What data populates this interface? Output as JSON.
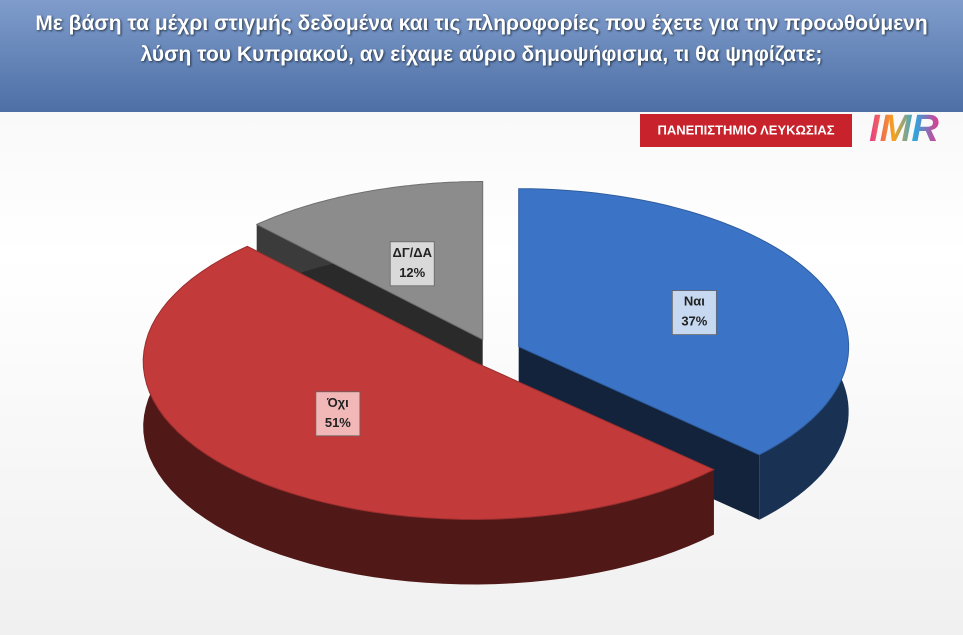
{
  "chart_data": {
    "type": "pie",
    "title": "Με βάση τα μέχρι στιγμής δεδομένα και τις πληροφορίες που έχετε για την προωθούμενη λύση του Κυπριακού, αν είχαμε αύριο δημοψήφισμα, τι θα ψηφίζατε;",
    "categories": [
      "Ναι",
      "Όχι",
      "ΔΓ/ΔΑ"
    ],
    "values": [
      37,
      51,
      12
    ],
    "value_labels": [
      "37%",
      "51%",
      "12%"
    ],
    "colors": [
      "#3b74c6",
      "#c23a3a",
      "#8c8c8c"
    ],
    "label_fills": [
      "#c6d9f1",
      "#f2b8b8",
      "#d9d9d9"
    ]
  },
  "logos": {
    "university": "ΠΑΝΕΠΙΣΤΗΜΙΟ ΛΕΥΚΩΣΙΑΣ",
    "brand": "IMR"
  }
}
